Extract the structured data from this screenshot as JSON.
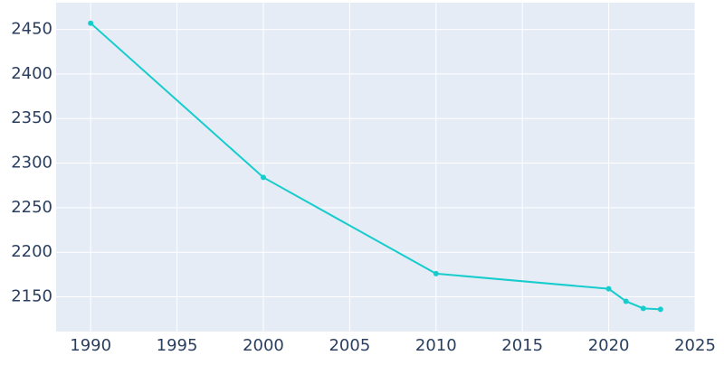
{
  "chart_data": {
    "type": "line",
    "x": [
      1990,
      2000,
      2010,
      2020,
      2021,
      2022,
      2023
    ],
    "series": [
      {
        "color": "#17cccc",
        "values": [
          2457,
          2284,
          2176,
          2159,
          2145,
          2137,
          2136
        ]
      }
    ],
    "xlim": [
      1988,
      2025
    ],
    "xticks": [
      1990,
      1995,
      2000,
      2005,
      2010,
      2015,
      2020,
      2025
    ],
    "ylim": [
      2111,
      2480
    ],
    "yticks": [
      2150,
      2200,
      2250,
      2300,
      2350,
      2400,
      2450
    ],
    "grid": true
  }
}
